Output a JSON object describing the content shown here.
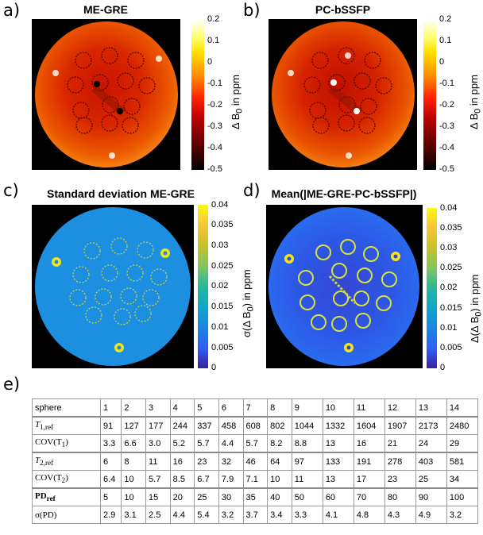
{
  "panels": {
    "a": {
      "letter": "a)",
      "title": "ME-GRE"
    },
    "b": {
      "letter": "b)",
      "title": "PC-bSSFP"
    },
    "c": {
      "letter": "c)",
      "title": "Standard deviation ME-GRE"
    },
    "d": {
      "letter": "d)",
      "title": "Mean(|ME-GRE-PC-bSSFP|)"
    },
    "e": {
      "letter": "e)"
    }
  },
  "colorbars": {
    "b0": {
      "label": "Δ B0 in ppm",
      "label_main": "Δ B",
      "label_sub": "0",
      "label_unit": " in ppm",
      "ticks": [
        "0.2",
        "0.1",
        "0",
        "-0.1",
        "-0.2",
        "-0.3",
        "-0.4",
        "-0.5"
      ],
      "range": [
        -0.5,
        0.2
      ],
      "colormap": "hot"
    },
    "std": {
      "label": "σ(Δ B0) in ppm",
      "label_main": "σ(Δ B",
      "label_sub": "0",
      "label_unit": ") in ppm",
      "ticks": [
        "0.04",
        "0.035",
        "0.03",
        "0.025",
        "0.02",
        "0.015",
        "0.01",
        "0.005",
        "0"
      ],
      "range": [
        0,
        0.04
      ],
      "colormap": "parula"
    },
    "mean": {
      "label": "Δ(Δ B0) in ppm",
      "label_main": "Δ(Δ B",
      "label_sub": "0",
      "label_unit": ") in ppm",
      "ticks": [
        "0.04",
        "0.035",
        "0.03",
        "0.025",
        "0.02",
        "0.015",
        "0.01",
        "0.005",
        "0"
      ],
      "range": [
        0,
        0.04
      ],
      "colormap": "parula"
    }
  },
  "table": {
    "header": {
      "label": "sphere",
      "values": [
        "1",
        "2",
        "3",
        "4",
        "5",
        "6",
        "7",
        "8",
        "9",
        "10",
        "11",
        "12",
        "13",
        "14"
      ]
    },
    "rows": [
      {
        "label_main": "T",
        "label_sub": "1,ref",
        "label": "T1,ref",
        "values": [
          "91",
          "127",
          "177",
          "244",
          "337",
          "458",
          "608",
          "802",
          "1044",
          "1332",
          "1604",
          "1907",
          "2173",
          "2480"
        ]
      },
      {
        "label_main": "COV(T",
        "label_sub": "1",
        "label_tail": ")",
        "label": "COV(T1)",
        "values": [
          "3.3",
          "6.6",
          "3.0",
          "5.2",
          "5.7",
          "4.4",
          "5.7",
          "8.2",
          "8.8",
          "13",
          "16",
          "21",
          "24",
          "29"
        ]
      },
      {
        "label_main": "T",
        "label_sub": "2,ref",
        "label": "T2,ref",
        "values": [
          "6",
          "8",
          "11",
          "16",
          "23",
          "32",
          "46",
          "64",
          "97",
          "133",
          "191",
          "278",
          "403",
          "581"
        ]
      },
      {
        "label_main": "COV(T",
        "label_sub": "2",
        "label_tail": ")",
        "label": "COV(T2)",
        "values": [
          "6.4",
          "10",
          "5.7",
          "8.5",
          "6.7",
          "7.9",
          "7.1",
          "10",
          "11",
          "13",
          "17",
          "23",
          "25",
          "34"
        ]
      },
      {
        "label_main": "PD",
        "label_sub": "ref",
        "label": "PDref",
        "values": [
          "5",
          "10",
          "15",
          "20",
          "25",
          "30",
          "35",
          "40",
          "50",
          "60",
          "70",
          "80",
          "90",
          "100"
        ]
      },
      {
        "label_main": "σ(PD)",
        "label_sub": "",
        "label": "σ(PD)",
        "values": [
          "2.9",
          "3.1",
          "2.5",
          "4.4",
          "5.4",
          "3.2",
          "3.7",
          "3.4",
          "3.3",
          "4.1",
          "4.8",
          "4.3",
          "4.9",
          "3.2"
        ]
      }
    ]
  }
}
